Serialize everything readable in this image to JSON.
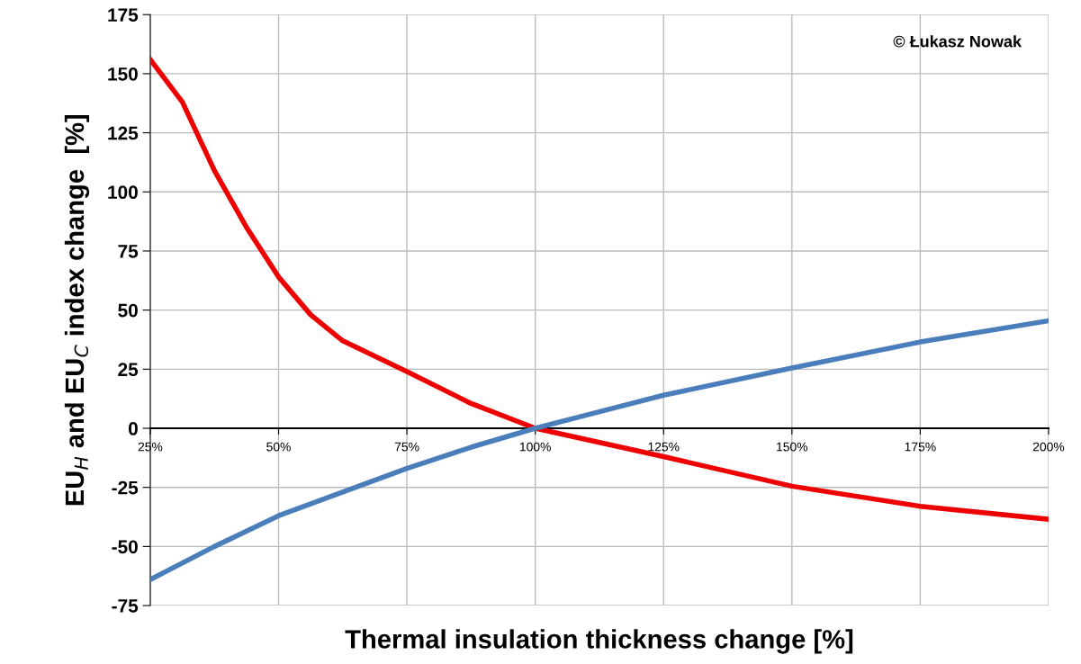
{
  "chart_data": {
    "type": "line",
    "xlabel": "Thermal insulation thickness change [%]",
    "ylabel": "EU$_{H}$ and EU$_{C}$ index change  [%]",
    "annotations": [
      "© Łukasz Nowak"
    ],
    "series": [
      {
        "color": "#ee0000",
        "x": [
          25,
          31.25,
          37.5,
          43.75,
          50,
          56.25,
          62.5,
          75,
          87.5,
          100,
          112.5,
          125,
          150,
          175,
          200
        ],
        "values": [
          156,
          138,
          109,
          85,
          64,
          48,
          37,
          24,
          10.5,
          0,
          -6,
          -12,
          -24.5,
          -33,
          -38.5
        ]
      },
      {
        "color": "#4a7ebb",
        "x": [
          25,
          37.5,
          50,
          62.5,
          75,
          87.5,
          100,
          112.5,
          125,
          150,
          175,
          200
        ],
        "values": [
          -64,
          -50,
          -37,
          -27,
          -17,
          -8,
          0,
          7,
          14,
          25.5,
          36.5,
          45.5
        ]
      }
    ],
    "xlim": [
      25,
      200
    ],
    "xticks": [
      {
        "value": 25,
        "label": "25%"
      },
      {
        "value": 50,
        "label": "50%"
      },
      {
        "value": 75,
        "label": "75%"
      },
      {
        "value": 100,
        "label": "100%"
      },
      {
        "value": 125,
        "label": "125%"
      },
      {
        "value": 150,
        "label": "150%"
      },
      {
        "value": 175,
        "label": "175%"
      },
      {
        "value": 200,
        "label": "200%"
      }
    ],
    "ylim": [
      -75,
      175
    ],
    "yticks": [
      -75,
      -50,
      -25,
      0,
      25,
      50,
      75,
      100,
      125,
      150,
      175
    ],
    "grid": true,
    "legend": false,
    "marker": "none",
    "line_style": "solid"
  }
}
